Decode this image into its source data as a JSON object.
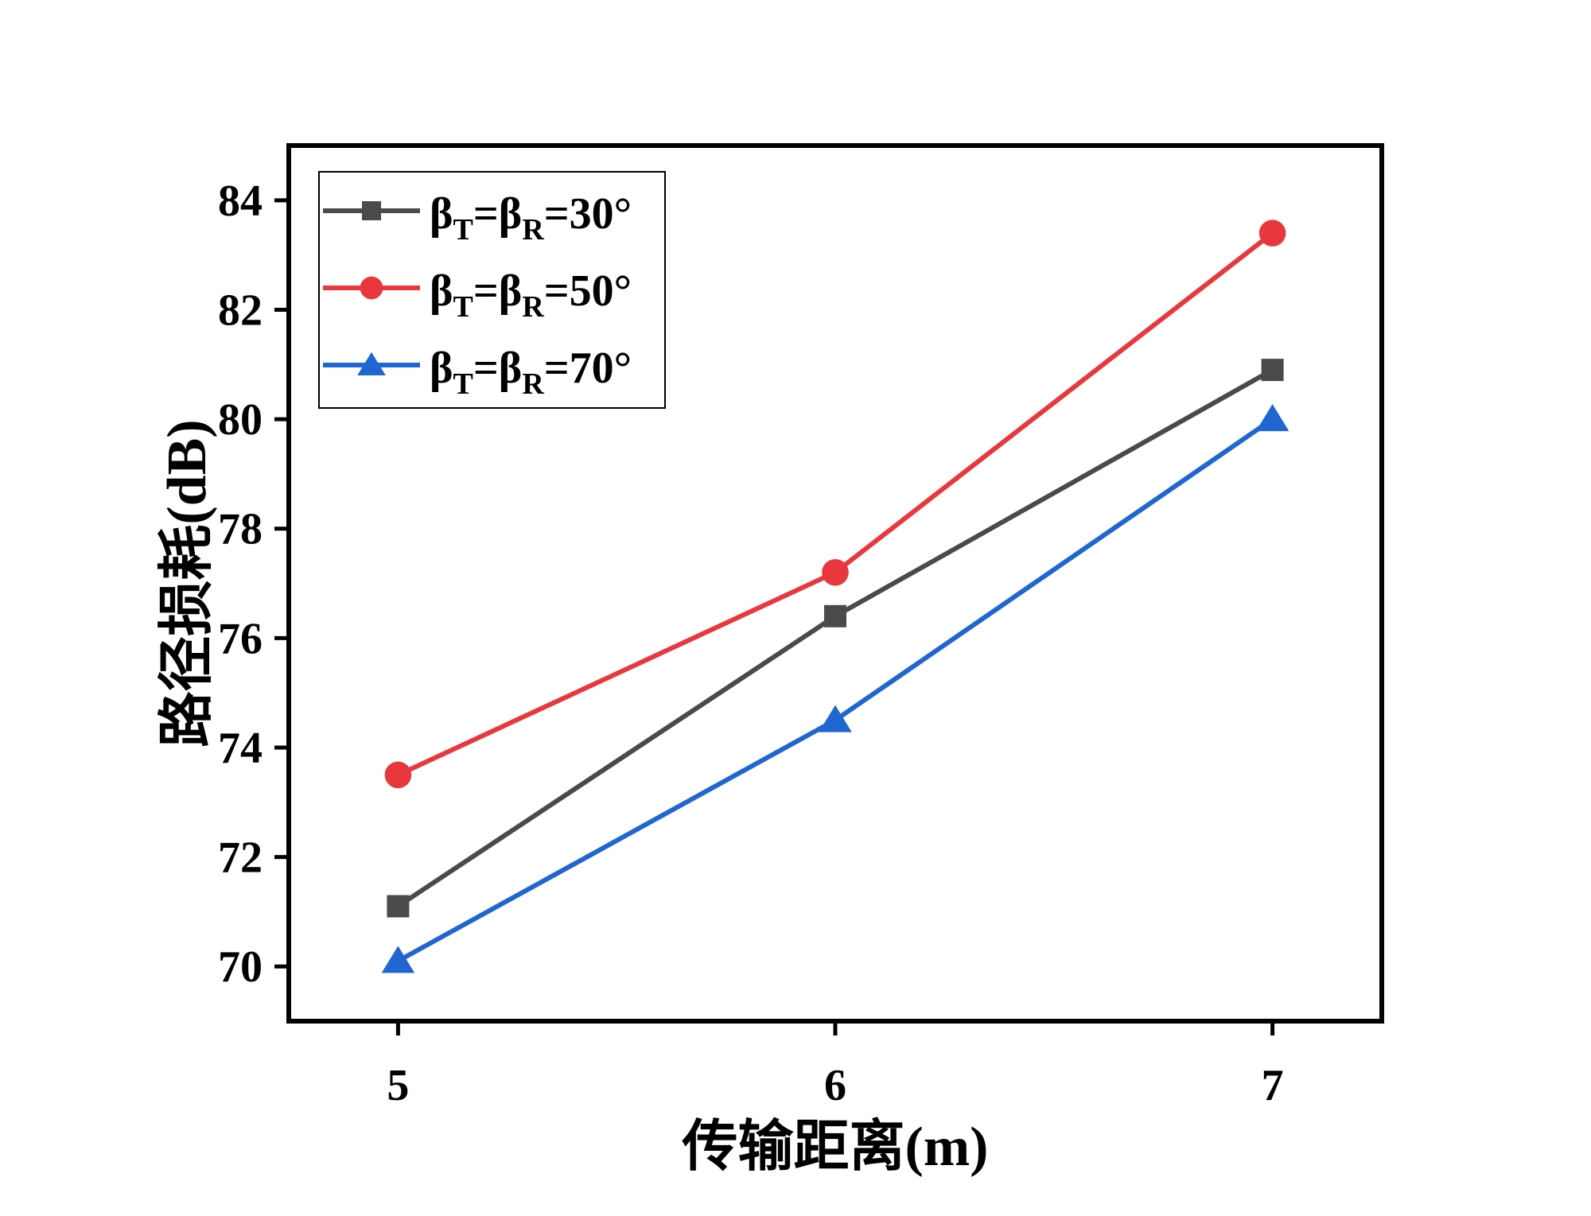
{
  "chart_data": {
    "type": "line",
    "xlabel": "传输距离(m)",
    "ylabel": "路径损耗(dB)",
    "x": [
      5,
      6,
      7
    ],
    "xlim": [
      4.75,
      7.25
    ],
    "ylim": [
      69,
      85
    ],
    "xticks": [
      5,
      6,
      7
    ],
    "yticks": [
      70,
      72,
      74,
      76,
      78,
      80,
      82,
      84
    ],
    "grid": false,
    "legend_position": "top-left",
    "series": [
      {
        "name": "βT=βR=30°",
        "legend": {
          "b1": "β",
          "s1": "T",
          "eq1": "=",
          "b2": "β",
          "s2": "R",
          "rest": "=30°"
        },
        "values": [
          71.1,
          76.4,
          80.9
        ],
        "color": "#4a4a4a",
        "marker": "square"
      },
      {
        "name": "βT=βR=50°",
        "legend": {
          "b1": "β",
          "s1": "T",
          "eq1": "=",
          "b2": "β",
          "s2": "R",
          "rest": "=50°"
        },
        "values": [
          73.5,
          77.2,
          83.4
        ],
        "color": "#e8383d",
        "marker": "circle"
      },
      {
        "name": "βT=βR=70°",
        "legend": {
          "b1": "β",
          "s1": "T",
          "eq1": "=",
          "b2": "β",
          "s2": "R",
          "rest": "=70°"
        },
        "values": [
          70.1,
          74.5,
          80.0
        ],
        "color": "#1f66d1",
        "marker": "triangle"
      }
    ]
  }
}
